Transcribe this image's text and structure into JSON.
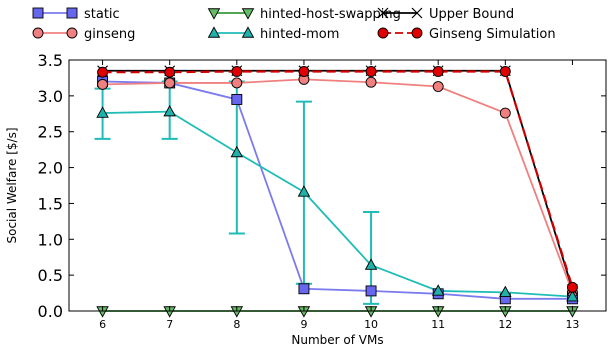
{
  "chart_data": {
    "type": "line",
    "xlabel": "Number of VMs",
    "ylabel": "Social Welfare [$/s]",
    "x": [
      6,
      7,
      8,
      9,
      10,
      11,
      12,
      13
    ],
    "xlim": [
      5.5,
      13.5
    ],
    "ylim": [
      0,
      3.5
    ],
    "yticks": [
      0.0,
      0.5,
      1.0,
      1.5,
      2.0,
      2.5,
      3.0,
      3.5
    ],
    "grid": false,
    "legend_position": "top",
    "series": [
      {
        "name": "static",
        "color": "#7b7bef",
        "marker": "square",
        "marker_color": "#6666ee",
        "dashed": false,
        "values": [
          3.2,
          3.18,
          2.95,
          0.31,
          0.28,
          0.24,
          0.17,
          0.17
        ]
      },
      {
        "name": "ginseng",
        "color": "#f08080",
        "marker": "circle",
        "marker_color": "#f08080",
        "dashed": false,
        "values": [
          3.16,
          3.18,
          3.18,
          3.23,
          3.19,
          3.13,
          2.76,
          0.26
        ]
      },
      {
        "name": "hinted-host-swapping",
        "color": "#3a9a3a",
        "marker": "triangle-down",
        "marker_color": "#66bb66",
        "dashed": false,
        "values": [
          0.0,
          0.0,
          0.0,
          0.0,
          0.0,
          0.0,
          0.0,
          0.0
        ]
      },
      {
        "name": "hinted-mom",
        "color": "#1fbcb8",
        "marker": "triangle-up",
        "marker_color": "#20b2aa",
        "dashed": false,
        "values": [
          2.76,
          2.78,
          2.21,
          1.66,
          0.64,
          0.28,
          0.26,
          0.2
        ],
        "error_low": [
          2.4,
          2.4,
          1.08,
          0.38,
          0.1,
          null,
          null,
          null
        ],
        "error_high": [
          3.1,
          3.2,
          3.2,
          2.92,
          1.38,
          null,
          null,
          null
        ]
      },
      {
        "name": "Upper Bound",
        "color": "#000000",
        "marker": "x",
        "marker_color": "#000000",
        "dashed": false,
        "values": [
          3.35,
          3.35,
          3.35,
          3.35,
          3.35,
          3.35,
          3.35,
          0.3
        ]
      },
      {
        "name": "Ginseng Simulation",
        "color": "#d00000",
        "marker": "circle",
        "marker_color": "#e00000",
        "dashed": true,
        "values": [
          3.33,
          3.33,
          3.34,
          3.34,
          3.34,
          3.34,
          3.34,
          0.33
        ]
      }
    ]
  }
}
